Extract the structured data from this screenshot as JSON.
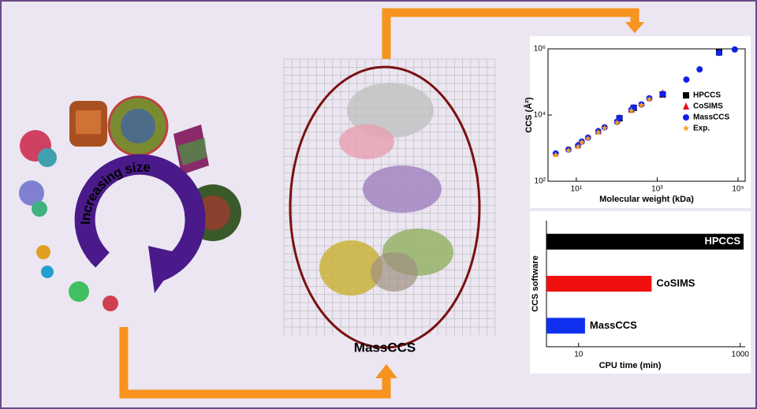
{
  "diagram": {
    "cycle_label": "Increasing size",
    "method_label": "MassCCS"
  },
  "chart_data": [
    {
      "type": "scatter",
      "xlabel": "Molecular weight (kDa)",
      "ylabel": "CCS (Å²)",
      "log_x": true,
      "log_y": true,
      "legend": "center right",
      "xlim": [
        2,
        150000
      ],
      "ylim": [
        100,
        1000000
      ],
      "xticks": [
        {
          "value": 10,
          "label": "10¹"
        },
        {
          "value": 1000,
          "label": "10³"
        },
        {
          "value": 100000,
          "label": "10⁵"
        }
      ],
      "yticks": [
        {
          "value": 100,
          "label": "10²"
        },
        {
          "value": 10000,
          "label": "10⁴"
        },
        {
          "value": 1000000,
          "label": "10⁶"
        }
      ],
      "x": [
        3.1,
        6.4,
        11,
        13.7,
        19.5,
        35,
        50,
        102,
        117,
        230,
        263,
        410,
        640,
        1370,
        5270,
        11200,
        34000,
        83000
      ],
      "series": [
        {
          "name": "HPCCS",
          "color": "#000000",
          "marker": "square",
          "values": [
            null,
            null,
            null,
            null,
            null,
            null,
            null,
            null,
            8000,
            null,
            16500,
            null,
            null,
            42000,
            null,
            null,
            780000,
            null
          ]
        },
        {
          "name": "CoSIMS",
          "color": "#e0101a",
          "marker": "triangle",
          "values": [
            null,
            null,
            1250,
            null,
            null,
            3300,
            null,
            null,
            null,
            14800,
            null,
            null,
            null,
            46000,
            null,
            null,
            null,
            null
          ]
        },
        {
          "name": "MassCCS",
          "color": "#1020e8",
          "marker": "circle",
          "values": [
            690,
            910,
            1200,
            1580,
            2080,
            3240,
            4260,
            6270,
            8250,
            14400,
            16900,
            21000,
            32000,
            43000,
            118000,
            240000,
            760000,
            960000
          ]
        },
        {
          "name": "Exp.",
          "color": "#f7a020",
          "marker": "star",
          "values": [
            620,
            850,
            1100,
            1500,
            1950,
            3000,
            4000,
            5900,
            null,
            13500,
            null,
            20000,
            30000,
            null,
            null,
            null,
            null,
            null
          ]
        }
      ]
    },
    {
      "type": "barh",
      "xlabel": "CPU time (min)",
      "ylabel": "CCS software",
      "log_x": true,
      "xlim": [
        4,
        1150
      ],
      "xticks": [
        10,
        1000
      ],
      "categories": [
        "HPCCS",
        "CoSIMS",
        "MassCCS"
      ],
      "values": [
        1100,
        80,
        12
      ],
      "colors": [
        "#000000",
        "#f01010",
        "#1030f0"
      ]
    }
  ]
}
